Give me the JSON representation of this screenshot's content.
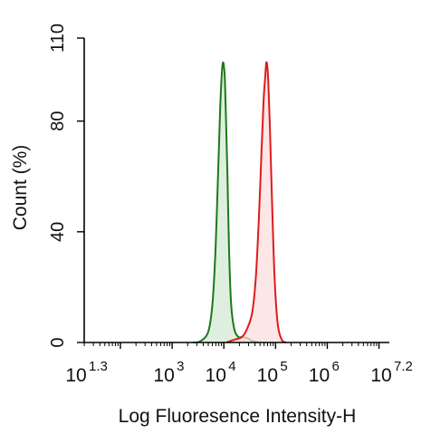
{
  "chart_data": {
    "type": "histogram",
    "xlabel": "Log Fluoresence Intensity-H",
    "ylabel": "Count  (%)",
    "xscale": "log10",
    "xlim": [
      1.3,
      7.2
    ],
    "ylim": [
      0,
      110
    ],
    "x_ticks": [
      {
        "exp": 1.3,
        "base": "10",
        "sup": "1.3"
      },
      {
        "exp": 3,
        "base": "10",
        "sup": "3"
      },
      {
        "exp": 4,
        "base": "10",
        "sup": "4"
      },
      {
        "exp": 5,
        "base": "10",
        "sup": "5"
      },
      {
        "exp": 6,
        "base": "10",
        "sup": "6"
      },
      {
        "exp": 7.2,
        "base": "10",
        "sup": "7.2"
      }
    ],
    "y_ticks": [
      {
        "value": 0,
        "label": "0"
      },
      {
        "value": 40,
        "label": "40"
      },
      {
        "value": 80,
        "label": "80"
      },
      {
        "value": 110,
        "label": "110"
      }
    ],
    "grid": false,
    "legend": "none",
    "series": [
      {
        "color": "#1a7a1a",
        "fill": "#d4ead4",
        "x_log10": [
          3.4,
          3.55,
          3.7,
          3.78,
          3.84,
          3.89,
          3.93,
          3.96,
          3.98,
          4.0,
          4.02,
          4.04,
          4.07,
          4.1,
          4.14,
          4.2,
          4.28,
          4.36,
          4.46,
          4.56,
          4.66
        ],
        "values": [
          0,
          0.5,
          4,
          14,
          34,
          62,
          85,
          97,
          101,
          100,
          95,
          82,
          60,
          34,
          14,
          5,
          2,
          2,
          1.5,
          0.5,
          0
        ]
      },
      {
        "color": "#dd1c1c",
        "fill": "#fbdede",
        "x_log10": [
          4.05,
          4.2,
          4.35,
          4.45,
          4.55,
          4.62,
          4.68,
          4.73,
          4.77,
          4.8,
          4.82,
          4.84,
          4.86,
          4.89,
          4.93,
          4.98,
          5.04,
          5.12,
          5.2
        ],
        "values": [
          0,
          1,
          2,
          5,
          11,
          24,
          46,
          70,
          88,
          96,
          101,
          100,
          94,
          78,
          52,
          24,
          7,
          1,
          0
        ]
      }
    ]
  }
}
